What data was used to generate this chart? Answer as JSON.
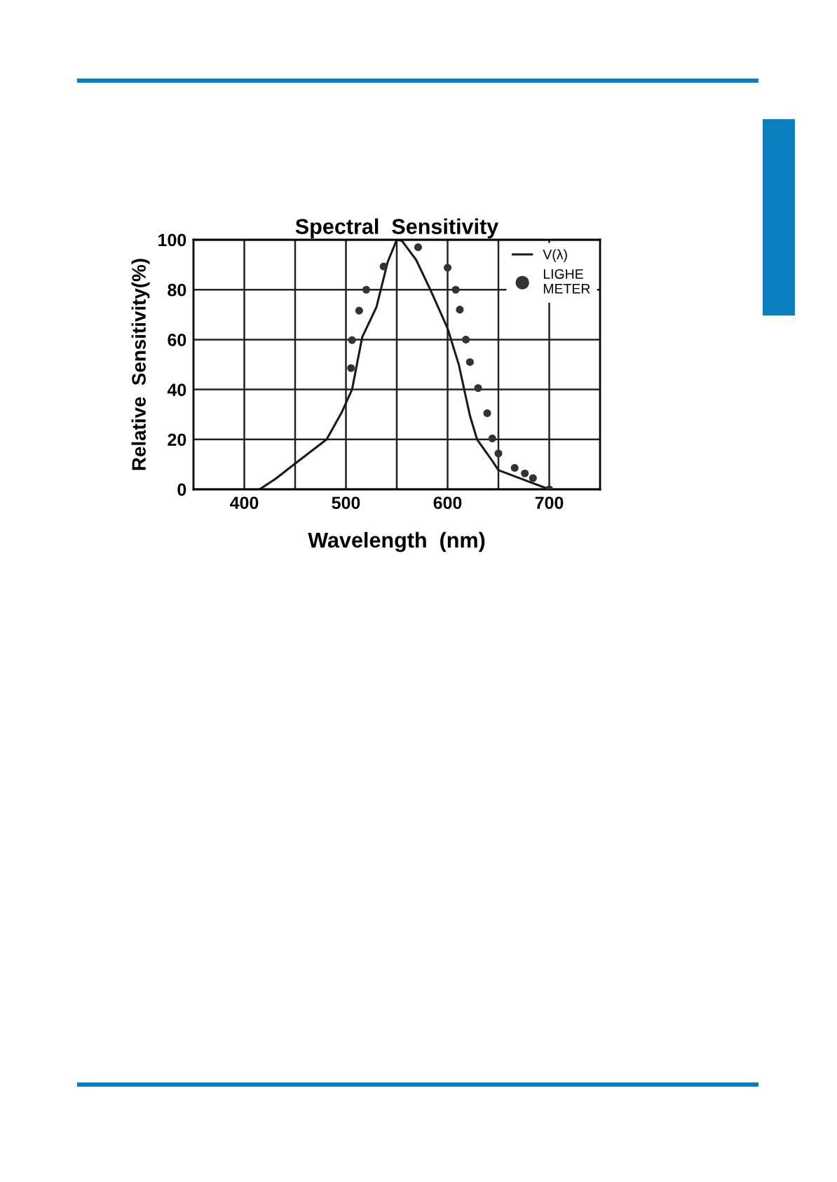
{
  "chart_data": {
    "type": "line",
    "title": "Spectral  Sensitivity",
    "xlabel": "Wavelength  (nm)",
    "ylabel": "Relative  Sensitivity(%)",
    "xlim": [
      350,
      750
    ],
    "ylim": [
      0,
      100
    ],
    "xticks": [
      400,
      {
        "value": 450,
        "label": null
      },
      500,
      {
        "value": 550,
        "label": null
      },
      600,
      {
        "value": 650,
        "label": null
      },
      700
    ],
    "yticks": [
      0,
      20,
      40,
      60,
      80,
      100
    ],
    "grid": true,
    "legend": "top right",
    "series": [
      {
        "name": "V(λ)",
        "color": "#1a1a1a",
        "line_style": "solid",
        "marker": "none",
        "x": [
          415,
          431,
          450,
          481,
          496,
          506,
          516,
          530,
          541,
          550,
          555,
          569,
          583,
          600,
          611,
          622,
          629,
          643,
          650,
          700
        ],
        "values": [
          0,
          4.3,
          10.3,
          20,
          31,
          40,
          61,
          73,
          91,
          100,
          99.6,
          92,
          80,
          64.5,
          50,
          29.5,
          20,
          12,
          7.7,
          0
        ]
      },
      {
        "name": "LIGHE\nMETER",
        "type": "scatter",
        "color": "#333333",
        "marker": "circle",
        "x": [
          505,
          506,
          513,
          520,
          537,
          571,
          600,
          608,
          612,
          618,
          622,
          630,
          639,
          644,
          650,
          666,
          676,
          684,
          700
        ],
        "values": [
          48.6,
          59.8,
          71.6,
          80,
          89.3,
          97,
          88.8,
          80,
          72,
          60,
          51,
          40.6,
          30.5,
          20.4,
          14.4,
          8.6,
          6.4,
          4.5,
          0
        ]
      }
    ]
  }
}
